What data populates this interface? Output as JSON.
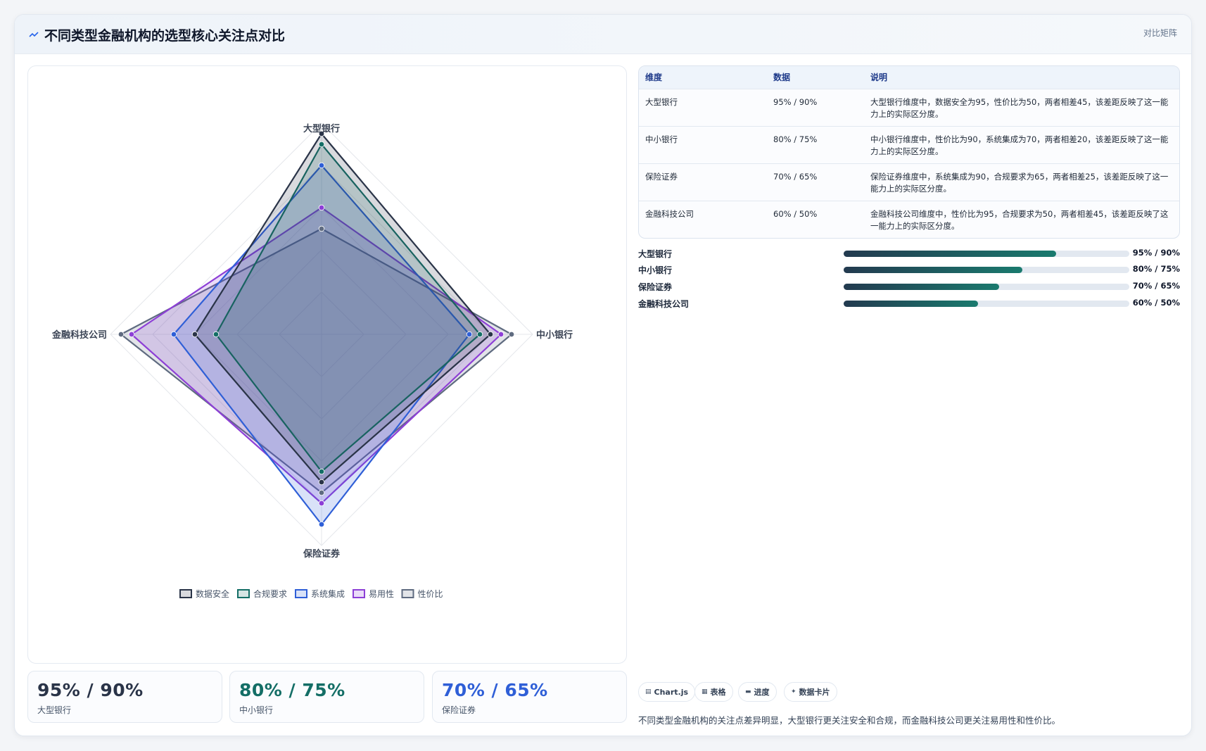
{
  "header": {
    "title": "不同类型金融机构的选型核心关注点对比",
    "tag": "对比矩阵"
  },
  "chart_data": {
    "type": "radar",
    "categories": [
      "大型银行",
      "中小银行",
      "保险证券",
      "金融科技公司"
    ],
    "range": [
      0,
      100
    ],
    "grid": true,
    "legend_position": "bottom",
    "series": [
      {
        "name": "数据安全",
        "values": [
          95,
          80,
          70,
          60
        ],
        "color": "#2a3448"
      },
      {
        "name": "合规要求",
        "values": [
          90,
          75,
          65,
          50
        ],
        "color": "#146e66"
      },
      {
        "name": "系统集成",
        "values": [
          80,
          70,
          90,
          70
        ],
        "color": "#2f5fd7"
      },
      {
        "name": "易用性",
        "values": [
          60,
          85,
          80,
          90
        ],
        "color": "#8d3fd6"
      },
      {
        "name": "性价比",
        "values": [
          50,
          90,
          75,
          95
        ],
        "color": "#5f6b80"
      }
    ]
  },
  "table": {
    "headers": [
      "维度",
      "数据",
      "说明"
    ],
    "rows": [
      {
        "dim": "大型银行",
        "data": "95% / 90%",
        "desc": "大型银行维度中，数据安全为95，性价比为50，两者相差45，该差距反映了这一能力上的实际区分度。"
      },
      {
        "dim": "中小银行",
        "data": "80% / 75%",
        "desc": "中小银行维度中，性价比为90，系统集成为70，两者相差20，该差距反映了这一能力上的实际区分度。"
      },
      {
        "dim": "保险证券",
        "data": "70% / 65%",
        "desc": "保险证券维度中，系统集成为90，合规要求为65，两者相差25，该差距反映了这一能力上的实际区分度。"
      },
      {
        "dim": "金融科技公司",
        "data": "60% / 50%",
        "desc": "金融科技公司维度中，性价比为95，合规要求为50，两者相差45，该差距反映了这一能力上的实际区分度。"
      }
    ]
  },
  "progress": [
    {
      "label": "大型银行",
      "value": "95% / 90%",
      "fill": 0.745
    },
    {
      "label": "中小银行",
      "value": "80% / 75%",
      "fill": 0.625
    },
    {
      "label": "保险证券",
      "value": "70% / 65%",
      "fill": 0.545
    },
    {
      "label": "金融科技公司",
      "value": "60% / 50%",
      "fill": 0.47
    }
  ],
  "stats": [
    {
      "value": "95% / 90%",
      "label": "大型银行",
      "color": "#2a3448"
    },
    {
      "value": "80% / 75%",
      "label": "中小银行",
      "color": "#146e66"
    },
    {
      "value": "70% / 65%",
      "label": "保险证券",
      "color": "#2f5fd7"
    }
  ],
  "chips": [
    {
      "icon": "▤",
      "label": "Chart.js"
    },
    {
      "icon": "▦",
      "label": "表格"
    },
    {
      "icon": "▬",
      "label": "进度"
    },
    {
      "icon": "✦",
      "label": "数据卡片"
    }
  ],
  "footnote": "不同类型金融机构的关注点差异明显，大型银行更关注安全和合规，而金融科技公司更关注易用性和性价比。"
}
